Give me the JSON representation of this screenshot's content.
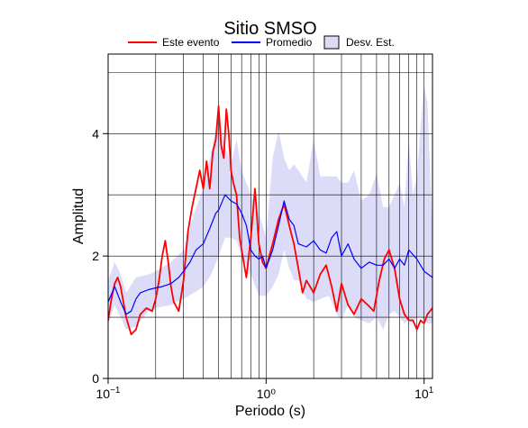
{
  "chart_data": {
    "type": "line",
    "title": "Sitio SMSO",
    "xlabel": "Periodo (s)",
    "ylabel": "Amplitud",
    "x_scale": "log",
    "xlim": [
      0.1,
      11.3
    ],
    "ylim": [
      0,
      5.3
    ],
    "grid": true,
    "legend_position": "top",
    "x_ticks": [
      {
        "value": 0.1,
        "base": "10",
        "exp": "−1"
      },
      {
        "value": 1,
        "text": "10⁰"
      },
      {
        "value": 10,
        "base": "10",
        "exp": "1"
      }
    ],
    "y_ticks": [
      0,
      2,
      4
    ],
    "legend": [
      {
        "label": "Este evento",
        "kind": "line",
        "color": "#ff0000"
      },
      {
        "label": "Promedio",
        "kind": "line",
        "color": "#0000ff"
      },
      {
        "label": "Desv. Est.",
        "kind": "box",
        "color": "#dcdcf8"
      }
    ],
    "series": [
      {
        "name": "Este evento",
        "color": "#ff0000",
        "x": [
          0.1,
          0.105,
          0.11,
          0.115,
          0.12,
          0.13,
          0.14,
          0.15,
          0.16,
          0.175,
          0.19,
          0.2,
          0.21,
          0.22,
          0.23,
          0.24,
          0.25,
          0.26,
          0.28,
          0.3,
          0.32,
          0.34,
          0.36,
          0.38,
          0.4,
          0.42,
          0.44,
          0.46,
          0.48,
          0.5,
          0.52,
          0.54,
          0.56,
          0.58,
          0.6,
          0.62,
          0.65,
          0.68,
          0.7,
          0.75,
          0.8,
          0.85,
          0.9,
          0.95,
          1.0,
          1.1,
          1.2,
          1.3,
          1.4,
          1.5,
          1.6,
          1.7,
          1.8,
          1.9,
          2.0,
          2.2,
          2.4,
          2.6,
          2.8,
          3.0,
          3.3,
          3.6,
          4.0,
          4.4,
          4.8,
          5.2,
          5.6,
          6.0,
          6.5,
          7.0,
          7.5,
          8.0,
          8.5,
          9.0,
          9.5,
          10.0,
          10.5,
          11.3
        ],
        "y": [
          0.95,
          1.3,
          1.55,
          1.65,
          1.5,
          1.0,
          0.72,
          0.8,
          1.05,
          1.15,
          1.1,
          1.3,
          1.6,
          2.0,
          2.25,
          1.9,
          1.5,
          1.25,
          1.1,
          1.6,
          2.4,
          2.8,
          3.1,
          3.4,
          3.1,
          3.55,
          3.1,
          3.7,
          3.9,
          4.45,
          3.8,
          3.6,
          4.4,
          4.0,
          3.4,
          3.2,
          3.0,
          2.3,
          2.1,
          1.65,
          2.3,
          3.1,
          2.2,
          1.9,
          1.8,
          2.2,
          2.6,
          2.85,
          2.5,
          2.2,
          1.8,
          1.4,
          1.6,
          1.5,
          1.4,
          1.7,
          1.85,
          1.5,
          1.1,
          1.55,
          1.2,
          1.05,
          1.3,
          1.2,
          1.1,
          1.6,
          1.95,
          2.1,
          1.8,
          1.3,
          1.05,
          0.95,
          0.95,
          0.8,
          0.95,
          0.9,
          1.05,
          1.15
        ]
      },
      {
        "name": "Promedio",
        "color": "#0000ff",
        "x": [
          0.1,
          0.11,
          0.12,
          0.13,
          0.14,
          0.15,
          0.16,
          0.18,
          0.2,
          0.22,
          0.25,
          0.28,
          0.3,
          0.33,
          0.36,
          0.4,
          0.44,
          0.48,
          0.5,
          0.55,
          0.6,
          0.65,
          0.7,
          0.75,
          0.8,
          0.85,
          0.9,
          0.95,
          1.0,
          1.1,
          1.2,
          1.3,
          1.4,
          1.5,
          1.6,
          1.8,
          2.0,
          2.2,
          2.4,
          2.6,
          2.8,
          3.0,
          3.3,
          3.6,
          4.0,
          4.5,
          5.0,
          5.5,
          6.0,
          6.5,
          7.0,
          7.5,
          8.0,
          9.0,
          10.0,
          11.3
        ],
        "y": [
          1.25,
          1.5,
          1.25,
          1.05,
          1.1,
          1.3,
          1.4,
          1.45,
          1.48,
          1.5,
          1.55,
          1.65,
          1.75,
          1.9,
          2.1,
          2.2,
          2.45,
          2.7,
          2.75,
          3.0,
          2.9,
          2.85,
          2.7,
          2.5,
          2.1,
          2.0,
          1.95,
          2.0,
          1.8,
          2.1,
          2.5,
          2.9,
          2.6,
          2.5,
          2.2,
          2.15,
          2.25,
          2.1,
          2.05,
          2.3,
          2.4,
          2.0,
          2.2,
          1.95,
          1.8,
          1.9,
          1.85,
          1.85,
          1.95,
          1.8,
          1.95,
          1.85,
          2.1,
          1.95,
          1.75,
          1.65
        ]
      }
    ],
    "band": {
      "name": "Desv. Est.",
      "color": "#dcdcf8",
      "x": [
        0.1,
        0.11,
        0.12,
        0.13,
        0.15,
        0.18,
        0.2,
        0.25,
        0.3,
        0.35,
        0.4,
        0.45,
        0.5,
        0.55,
        0.6,
        0.65,
        0.7,
        0.8,
        0.9,
        1.0,
        1.1,
        1.2,
        1.3,
        1.4,
        1.5,
        1.6,
        1.8,
        2.0,
        2.2,
        2.5,
        2.8,
        3.0,
        3.3,
        3.6,
        4.0,
        4.5,
        5.0,
        5.5,
        6.0,
        6.5,
        7.0,
        7.5,
        8.0,
        8.5,
        9.0,
        9.5,
        10.0,
        10.5,
        11.3
      ],
      "upper": [
        1.6,
        1.9,
        1.7,
        1.4,
        1.65,
        1.7,
        1.75,
        1.9,
        2.1,
        2.7,
        3.1,
        3.7,
        4.3,
        3.8,
        3.5,
        3.9,
        3.4,
        3.0,
        2.7,
        2.3,
        3.6,
        4.05,
        3.6,
        3.4,
        3.5,
        3.4,
        3.2,
        3.9,
        3.3,
        3.3,
        3.3,
        3.2,
        3.2,
        3.4,
        2.9,
        3.0,
        3.35,
        2.8,
        2.8,
        3.0,
        3.2,
        2.8,
        3.9,
        3.0,
        3.3,
        4.1,
        4.8,
        4.5,
        2.4
      ],
      "lower": [
        0.9,
        1.2,
        1.0,
        0.8,
        0.85,
        1.1,
        1.15,
        1.2,
        1.3,
        1.4,
        1.5,
        1.7,
        2.0,
        2.3,
        2.3,
        2.25,
        2.0,
        1.7,
        1.35,
        1.35,
        1.5,
        1.7,
        2.1,
        1.8,
        1.6,
        1.6,
        1.3,
        1.25,
        1.3,
        1.35,
        1.05,
        0.95,
        1.2,
        1.0,
        0.95,
        0.9,
        1.0,
        0.8,
        1.05,
        1.1,
        1.0,
        0.9,
        0.95,
        0.9,
        1.0,
        1.0,
        0.95,
        0.9,
        0.9
      ]
    }
  }
}
